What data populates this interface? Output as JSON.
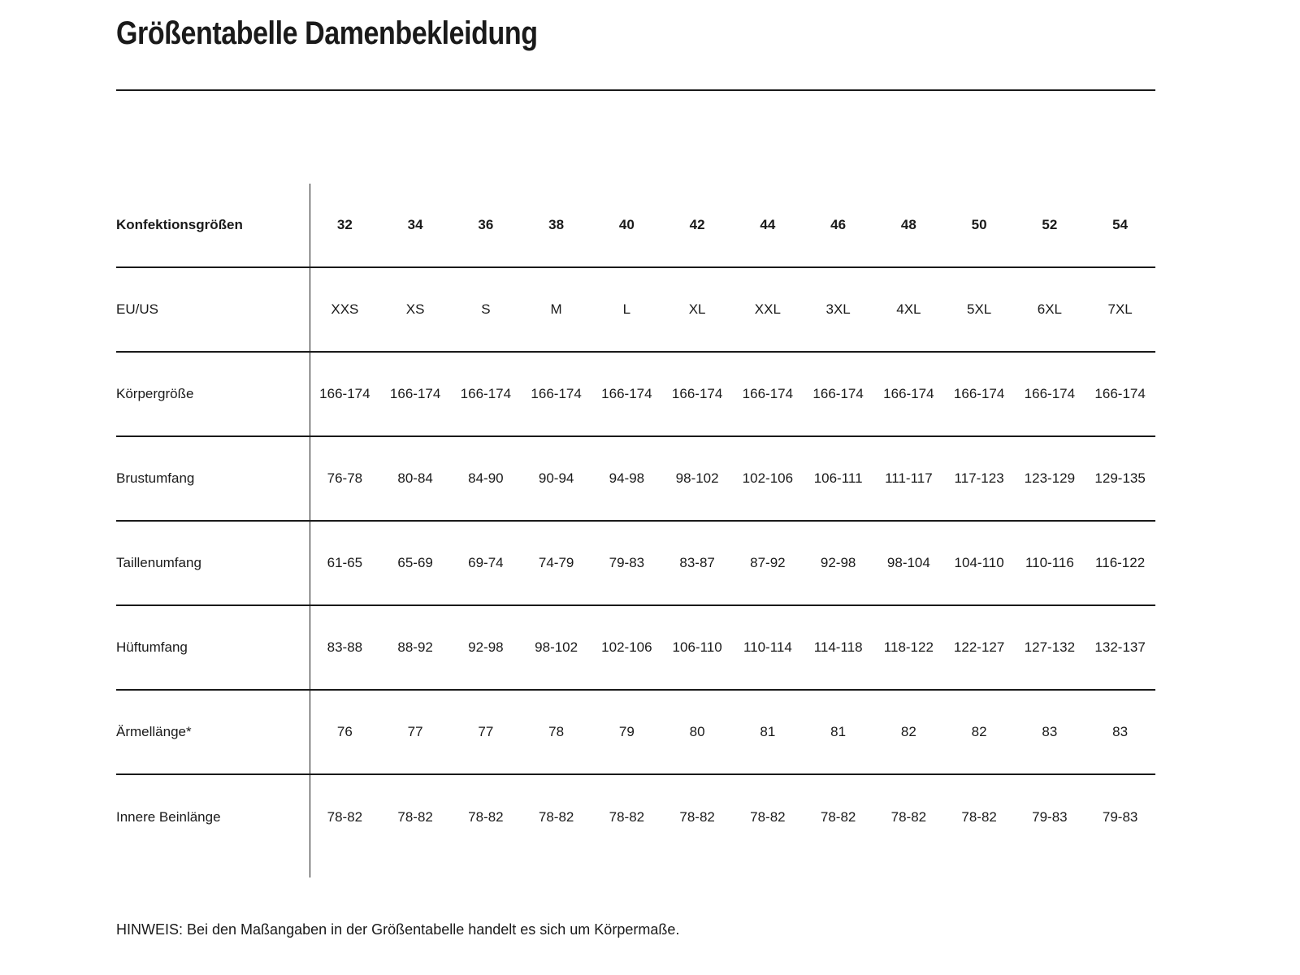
{
  "page": {
    "title": "Größentabelle Damenbekleidung",
    "note": "HINWEIS: Bei den Maßangaben in der Größentabelle handelt es sich um Körpermaße."
  },
  "colors": {
    "text": "#1a1a1a",
    "line": "#1a1a1a",
    "background": "#ffffff"
  },
  "table": {
    "header": {
      "label": "Konfektionsgrößen",
      "values": [
        "32",
        "34",
        "36",
        "38",
        "40",
        "42",
        "44",
        "46",
        "48",
        "50",
        "52",
        "54"
      ]
    },
    "rows": [
      {
        "label": "EU/US",
        "values": [
          "XXS",
          "XS",
          "S",
          "M",
          "L",
          "XL",
          "XXL",
          "3XL",
          "4XL",
          "5XL",
          "6XL",
          "7XL"
        ]
      },
      {
        "label": "Körpergröße",
        "values": [
          "166-174",
          "166-174",
          "166-174",
          "166-174",
          "166-174",
          "166-174",
          "166-174",
          "166-174",
          "166-174",
          "166-174",
          "166-174",
          "166-174"
        ]
      },
      {
        "label": "Brustumfang",
        "values": [
          "76-78",
          "80-84",
          "84-90",
          "90-94",
          "94-98",
          "98-102",
          "102-106",
          "106-111",
          "111-117",
          "117-123",
          "123-129",
          "129-135"
        ]
      },
      {
        "label": "Taillenumfang",
        "values": [
          "61-65",
          "65-69",
          "69-74",
          "74-79",
          "79-83",
          "83-87",
          "87-92",
          "92-98",
          "98-104",
          "104-110",
          "110-116",
          "116-122"
        ]
      },
      {
        "label": "Hüftumfang",
        "values": [
          "83-88",
          "88-92",
          "92-98",
          "98-102",
          "102-106",
          "106-110",
          "110-114",
          "114-118",
          "118-122",
          "122-127",
          "127-132",
          "132-137"
        ]
      },
      {
        "label": "Ärmellänge*",
        "values": [
          "76",
          "77",
          "77",
          "78",
          "79",
          "80",
          "81",
          "81",
          "82",
          "82",
          "83",
          "83"
        ]
      },
      {
        "label": "Innere Beinlänge",
        "values": [
          "78-82",
          "78-82",
          "78-82",
          "78-82",
          "78-82",
          "78-82",
          "78-82",
          "78-82",
          "78-82",
          "78-82",
          "79-83",
          "79-83"
        ]
      }
    ]
  }
}
